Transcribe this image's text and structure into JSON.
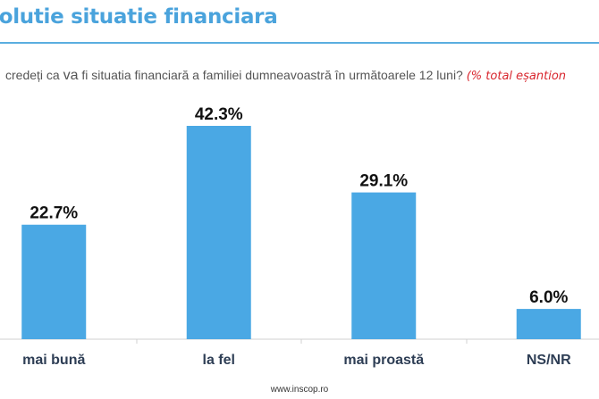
{
  "header": {
    "title": "volutie situatie financiara"
  },
  "question": {
    "text_before": "credeți ca ",
    "text_va": "va",
    "text_after": " fi situatia financiară a familiei dumneavoastră în următoarele 12 luni? ",
    "note": "(% total eșantion"
  },
  "chart_data": {
    "type": "bar",
    "title": "volutie situatie financiara",
    "categories": [
      "mai bună",
      "la fel",
      "mai proastă",
      "NS/NR"
    ],
    "values": [
      22.7,
      42.3,
      29.1,
      6.0
    ],
    "value_labels": [
      "22.7%",
      "42.3%",
      "29.1%",
      "6.0%"
    ],
    "unit": "%",
    "xlabel": "",
    "ylabel": "",
    "ylim": [
      0,
      45
    ],
    "grid": false,
    "legend": "none",
    "bar_color": "#4aa8e4"
  },
  "footer": {
    "source": "www.inscop.ro"
  }
}
